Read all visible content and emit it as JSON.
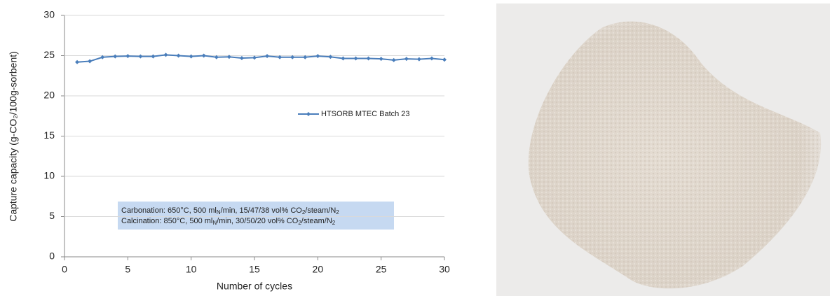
{
  "chart_data": {
    "type": "line",
    "xlabel": "Number of cycles",
    "ylabel": "Capture capacity (g-CO₂/100g-sorbent)",
    "x": [
      1,
      2,
      3,
      4,
      5,
      6,
      7,
      8,
      9,
      10,
      11,
      12,
      13,
      14,
      15,
      16,
      17,
      18,
      19,
      20,
      21,
      22,
      23,
      24,
      25,
      26,
      27,
      28,
      29,
      30
    ],
    "series": [
      {
        "name": "HTSORB MTEC Batch 23",
        "color": "#4a7ebb",
        "values": [
          24.2,
          24.3,
          24.8,
          24.9,
          24.95,
          24.9,
          24.9,
          25.1,
          25.0,
          24.9,
          25.0,
          24.8,
          24.85,
          24.7,
          24.75,
          24.95,
          24.8,
          24.8,
          24.8,
          24.95,
          24.85,
          24.65,
          24.65,
          24.65,
          24.6,
          24.45,
          24.6,
          24.55,
          24.65,
          24.5
        ]
      }
    ],
    "xlim": [
      0,
      30
    ],
    "xticks": [
      0,
      5,
      10,
      15,
      20,
      25,
      30
    ],
    "ylim": [
      0,
      30
    ],
    "yticks": [
      0,
      5,
      10,
      15,
      20,
      25,
      30
    ],
    "grid": true,
    "annotation": [
      [
        "Carbonation: 650°C, 500 ml",
        "N",
        "/min, 15/47/38 vol% CO",
        "2",
        "/steam/N",
        "2"
      ],
      [
        "Calcination:  850°C, 500 ml",
        "N",
        "/min, 30/50/20 vol% CO",
        "2",
        "/steam/N",
        "2"
      ]
    ]
  }
}
